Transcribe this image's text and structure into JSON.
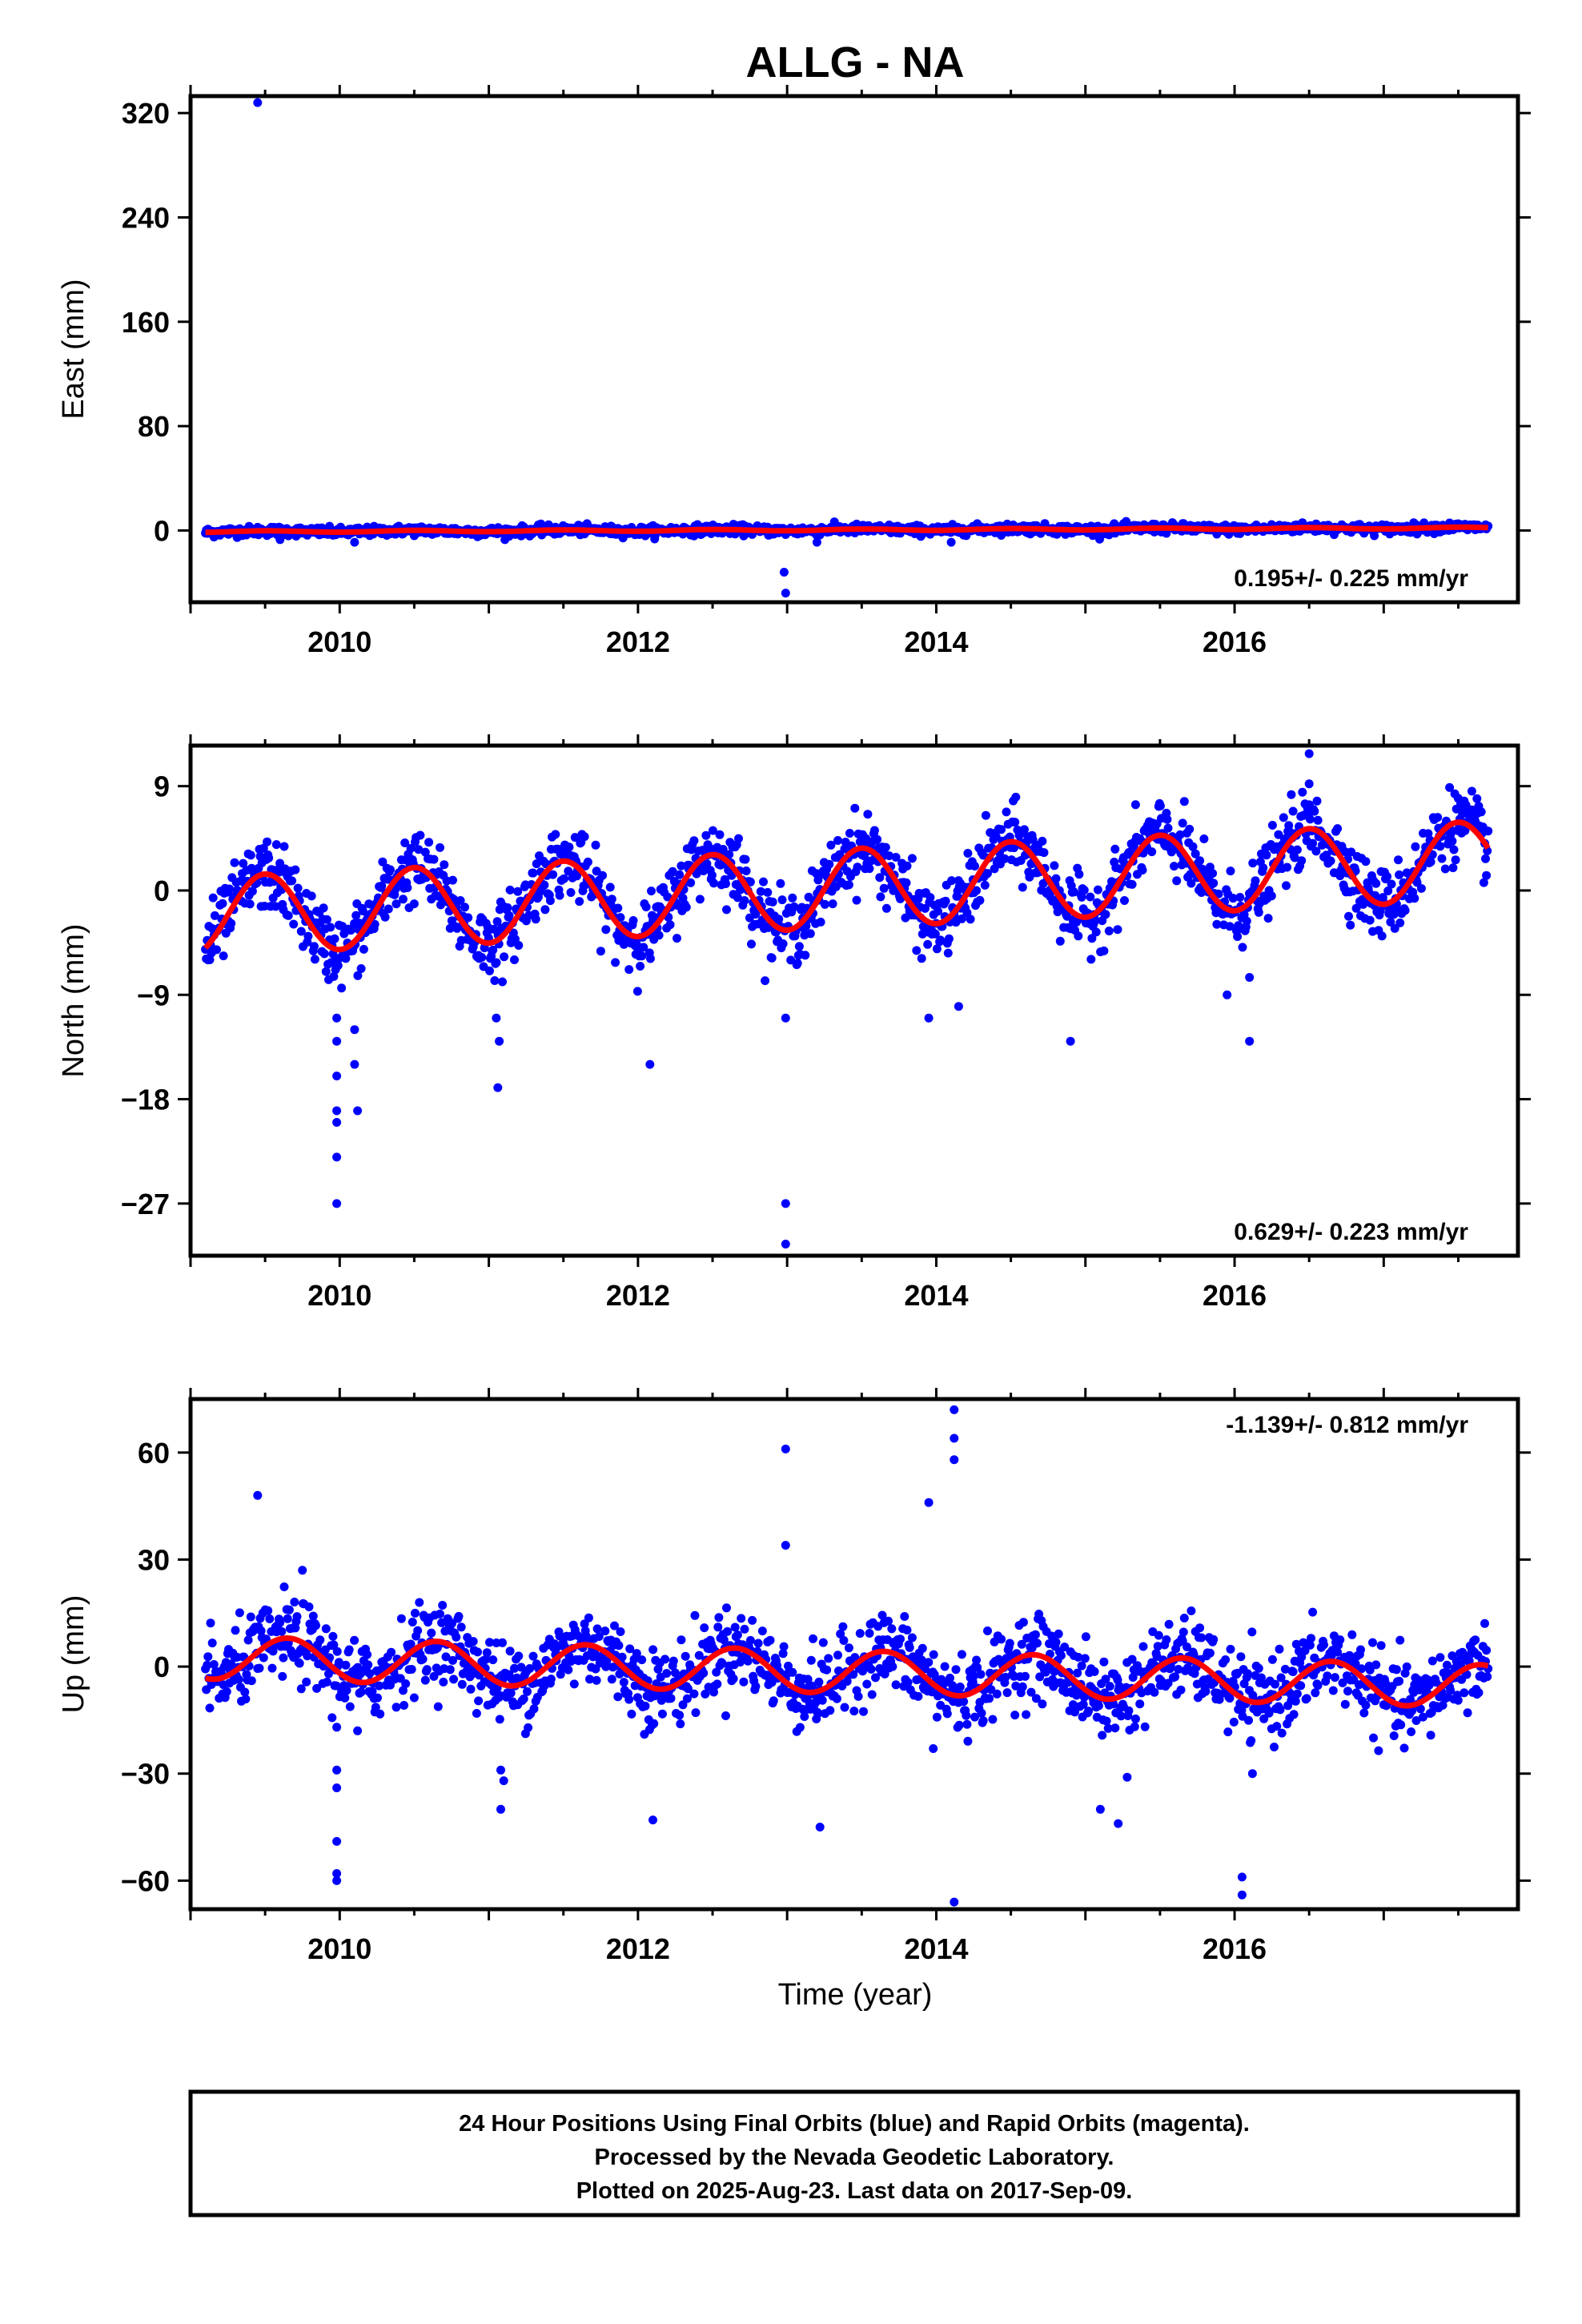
{
  "title": "ALLG - NA",
  "x_axis_label": "Time (year)",
  "colors": {
    "points": "#0000ff",
    "fit": "#ff0000",
    "axes": "#000000"
  },
  "footer": {
    "line1": "24 Hour Positions Using Final Orbits (blue) and Rapid Orbits (magenta).",
    "line2": "Processed by the Nevada Geodetic Laboratory.",
    "line3": "Plotted on 2025-Aug-23. Last data on 2017-Sep-09."
  },
  "chart_data": [
    {
      "type": "scatter",
      "component": "east",
      "ylabel": "East (mm)",
      "xlim": [
        2009.0,
        2017.9
      ],
      "ylim": [
        -55,
        333
      ],
      "xticks": [
        2010,
        2012,
        2014,
        2016
      ],
      "yticks": [
        0,
        80,
        160,
        240,
        320
      ],
      "yticklabels": [
        "0",
        "80",
        "160",
        "240",
        "320"
      ],
      "rate_label": "0.195+/- 0.225 mm/yr",
      "rate_position": "bottom-right",
      "trend": {
        "start": [
          2009.1,
          -1.0
        ],
        "end": [
          2017.7,
          2.0
        ],
        "annual_amplitude": 0.6,
        "scatter": 1.8
      },
      "outliers": [
        [
          2009.45,
          328
        ],
        [
          2012.98,
          -32
        ],
        [
          2012.99,
          -48
        ],
        [
          2009.6,
          -7
        ],
        [
          2010.1,
          -9
        ],
        [
          2014.1,
          -9
        ],
        [
          2013.2,
          -9
        ]
      ]
    },
    {
      "type": "scatter",
      "component": "north",
      "ylabel": "North (mm)",
      "xlim": [
        2009.0,
        2017.9
      ],
      "ylim": [
        -31.5,
        12.5
      ],
      "xticks": [
        2010,
        2012,
        2014,
        2016
      ],
      "yticks": [
        9,
        0,
        -9,
        -18,
        -27
      ],
      "yticklabels": [
        "9",
        "0",
        "−9",
        "−18",
        "−27"
      ],
      "rate_label": "0.629+/- 0.223 mm/yr",
      "rate_position": "bottom-right",
      "trend": {
        "start": [
          2009.1,
          -2.2
        ],
        "end": [
          2017.7,
          2.6
        ],
        "annual_amplitude": 3.4,
        "annual_peak": 2009.5,
        "scatter": 1.5
      },
      "outliers": [
        [
          2009.98,
          -11
        ],
        [
          2009.98,
          -13
        ],
        [
          2009.98,
          -16
        ],
        [
          2009.98,
          -19
        ],
        [
          2009.98,
          -20
        ],
        [
          2009.98,
          -23
        ],
        [
          2009.98,
          -27
        ],
        [
          2010.1,
          -12
        ],
        [
          2010.1,
          -15
        ],
        [
          2010.12,
          -19
        ],
        [
          2011.05,
          -11
        ],
        [
          2011.07,
          -13
        ],
        [
          2011.06,
          -17
        ],
        [
          2012.08,
          -15
        ],
        [
          2012.99,
          -11
        ],
        [
          2012.99,
          -27
        ],
        [
          2012.99,
          -30.5
        ],
        [
          2013.95,
          -11
        ],
        [
          2014.15,
          -10
        ],
        [
          2014.9,
          -13
        ],
        [
          2015.95,
          -9
        ],
        [
          2016.1,
          -13
        ],
        [
          2016.1,
          -7.5
        ],
        [
          2016.5,
          11.8
        ],
        [
          2016.5,
          9.2
        ]
      ]
    },
    {
      "type": "scatter",
      "component": "up",
      "ylabel": "Up (mm)",
      "xlim": [
        2009.0,
        2017.9
      ],
      "ylim": [
        -68,
        75
      ],
      "xticks": [
        2010,
        2012,
        2014,
        2016
      ],
      "yticks": [
        60,
        30,
        0,
        -30,
        -60
      ],
      "yticklabels": [
        "60",
        "30",
        "0",
        "−30",
        "−60"
      ],
      "rate_label": "-1.139+/- 0.812 mm/yr",
      "rate_position": "top-right",
      "trend": {
        "start": [
          2009.1,
          2.5
        ],
        "end": [
          2017.7,
          -5.5
        ],
        "annual_amplitude": 6.0,
        "annual_peak": 2009.65,
        "scatter": 5.5
      },
      "outliers": [
        [
          2009.45,
          48
        ],
        [
          2009.75,
          27
        ],
        [
          2009.98,
          -17
        ],
        [
          2009.98,
          -29
        ],
        [
          2009.98,
          -34
        ],
        [
          2009.98,
          -49
        ],
        [
          2009.98,
          -58
        ],
        [
          2009.98,
          -60
        ],
        [
          2010.12,
          -18
        ],
        [
          2011.08,
          -29
        ],
        [
          2011.1,
          -32
        ],
        [
          2011.08,
          -40
        ],
        [
          2012.1,
          -43
        ],
        [
          2012.99,
          61
        ],
        [
          2012.99,
          34
        ],
        [
          2013.22,
          -45
        ],
        [
          2013.95,
          46
        ],
        [
          2013.98,
          -23
        ],
        [
          2014.12,
          -66
        ],
        [
          2014.12,
          72
        ],
        [
          2014.12,
          64
        ],
        [
          2014.12,
          58
        ],
        [
          2015.1,
          -40
        ],
        [
          2015.22,
          -44
        ],
        [
          2015.28,
          -31
        ],
        [
          2016.05,
          -59
        ],
        [
          2016.05,
          -64
        ],
        [
          2016.12,
          -30
        ]
      ]
    }
  ]
}
